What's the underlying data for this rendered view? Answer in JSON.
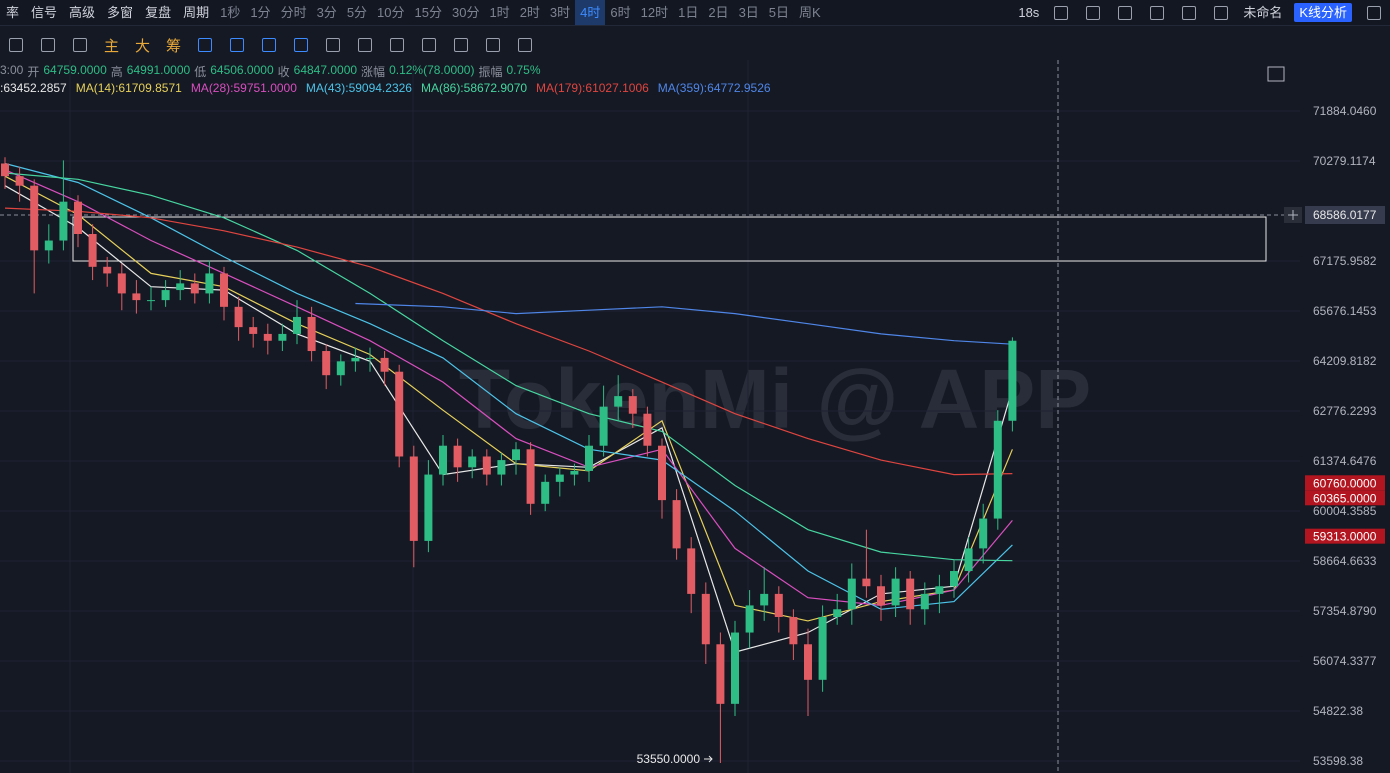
{
  "toolbar": {
    "left_items": [
      "率",
      "信号",
      "高级",
      "多窗",
      "复盘",
      "周期"
    ],
    "intervals": [
      "1秒",
      "1分",
      "分时",
      "3分",
      "5分",
      "10分",
      "15分",
      "30分",
      "1时",
      "2时",
      "3时",
      "4时",
      "6时",
      "12时",
      "1日",
      "2日",
      "3日",
      "5日",
      "周K"
    ],
    "active_interval": "4时",
    "timer": "18s",
    "layout_name": "未命名",
    "analysis_button": "K线分析"
  },
  "drawing_tools": {
    "labels": [
      "主",
      "大",
      "筹"
    ]
  },
  "ohlc_info": {
    "time": "3:00",
    "items": [
      {
        "label": "开",
        "value": "64759.0000"
      },
      {
        "label": "高",
        "value": "64991.0000"
      },
      {
        "label": "低",
        "value": "64506.0000"
      },
      {
        "label": "收",
        "value": "64847.0000"
      },
      {
        "label": "涨幅",
        "value": "0.12%(78.0000)"
      },
      {
        "label": "振幅",
        "value": "0.75%"
      }
    ]
  },
  "watermark": "TokenMi @ APP",
  "chart_data": {
    "type": "candlestick",
    "log_scale": true,
    "grid": true,
    "up_color": "#2ebd85",
    "down_color": "#e25c64",
    "ylim": [
      53309,
      73559
    ],
    "yticks": [
      {
        "value": 71884.046,
        "label": "71884.0460"
      },
      {
        "value": 70279.1174,
        "label": "70279.1174"
      },
      {
        "value": 67175.9582,
        "label": "67175.9582"
      },
      {
        "value": 65676.1453,
        "label": "65676.1453"
      },
      {
        "value": 64209.8182,
        "label": "64209.8182"
      },
      {
        "value": 62776.2293,
        "label": "62776.2293"
      },
      {
        "value": 61374.6476,
        "label": "61374.6476"
      },
      {
        "value": 60004.3585,
        "label": "60004.3585"
      },
      {
        "value": 58664.6633,
        "label": "58664.6633"
      },
      {
        "value": 57354.879,
        "label": "57354.8790"
      },
      {
        "value": 56074.3377,
        "label": "56074.3377"
      },
      {
        "value": 54822.38,
        "label": "54822.38"
      },
      {
        "value": 53598.38,
        "label": "53598.38"
      }
    ],
    "open": [
      70200,
      69800,
      69500,
      67500,
      67800,
      69000,
      68000,
      67000,
      66800,
      66200,
      66000,
      66000,
      66300,
      66500,
      66200,
      66800,
      65800,
      65200,
      65000,
      64800,
      65000,
      65500,
      64500,
      63800,
      64200,
      64300,
      64300,
      63900,
      61500,
      59200,
      61000,
      61800,
      61200,
      61500,
      61000,
      61400,
      61700,
      60200,
      60800,
      61000,
      61100,
      61800,
      62900,
      63200,
      62700,
      61800,
      60300,
      59000,
      57800,
      56500,
      55000,
      56800,
      57500,
      57800,
      57200,
      56500,
      55600,
      57200,
      57400,
      58200,
      58000,
      57500,
      58200,
      57400,
      57800,
      58000,
      58400,
      59000,
      59800,
      62500
    ],
    "high": [
      70400,
      70100,
      69700,
      68300,
      70300,
      69200,
      68300,
      67300,
      67100,
      66600,
      66400,
      66600,
      66900,
      66800,
      67200,
      67000,
      66100,
      65500,
      65300,
      65300,
      66000,
      65800,
      64700,
      64400,
      64600,
      64600,
      64500,
      64100,
      61800,
      61400,
      62100,
      62000,
      61700,
      61700,
      61600,
      61900,
      61900,
      61000,
      61200,
      61300,
      62100,
      63500,
      63800,
      63400,
      62900,
      62000,
      60600,
      59300,
      58100,
      56800,
      57100,
      57900,
      58500,
      58000,
      57400,
      56900,
      57500,
      57800,
      58600,
      59500,
      58300,
      58500,
      58400,
      58100,
      58300,
      58700,
      59300,
      60200,
      62800,
      64900
    ],
    "low": [
      69400,
      69000,
      66200,
      67100,
      67500,
      67600,
      66600,
      66400,
      65700,
      65600,
      65700,
      65800,
      66000,
      65900,
      65900,
      65400,
      64800,
      64600,
      64400,
      64500,
      64700,
      64200,
      63400,
      63500,
      63900,
      63900,
      63500,
      61200,
      58500,
      58900,
      60700,
      60800,
      60900,
      60700,
      60700,
      61000,
      59900,
      60000,
      60400,
      60700,
      60800,
      61500,
      62500,
      62300,
      61500,
      59800,
      58700,
      57300,
      56000,
      53550,
      54700,
      56400,
      57100,
      56800,
      56100,
      54700,
      55300,
      57000,
      57000,
      57700,
      57100,
      57200,
      57000,
      57000,
      57300,
      57700,
      58100,
      58600,
      59500,
      62200
    ],
    "close": [
      69800,
      69500,
      67500,
      67800,
      69000,
      68000,
      67000,
      66800,
      66200,
      66000,
      66000,
      66300,
      66500,
      66200,
      66800,
      65800,
      65200,
      65000,
      64800,
      65000,
      65500,
      64500,
      63800,
      64200,
      64300,
      64300,
      63900,
      61500,
      59200,
      61000,
      61800,
      61200,
      61500,
      61000,
      61400,
      61700,
      60200,
      60800,
      61000,
      61100,
      61800,
      62900,
      63200,
      62700,
      61800,
      60300,
      59000,
      57800,
      56500,
      55000,
      56800,
      57500,
      57800,
      57200,
      56500,
      55600,
      57200,
      57400,
      58200,
      58000,
      57500,
      58200,
      57400,
      57800,
      58000,
      58400,
      59000,
      59800,
      62500,
      64800
    ],
    "series": [
      {
        "name": ":63452.2857",
        "color": "#e8e8e8",
        "x": [
          0,
          5,
          10,
          15,
          20,
          25,
          30,
          35,
          40,
          45,
          50,
          55,
          60,
          65,
          69
        ],
        "values": [
          69500,
          68200,
          66400,
          66300,
          65000,
          64200,
          61000,
          61300,
          61200,
          62300,
          56300,
          56800,
          57800,
          58000,
          63400
        ]
      },
      {
        "name": "MA(14):61709.8571",
        "color": "#e6d05a",
        "x": [
          0,
          5,
          10,
          15,
          20,
          25,
          30,
          35,
          40,
          45,
          50,
          55,
          60,
          65,
          69
        ],
        "values": [
          69800,
          68600,
          66800,
          66400,
          65300,
          64400,
          62800,
          61300,
          61100,
          62500,
          57500,
          57100,
          57600,
          57900,
          61700
        ]
      },
      {
        "name": "MA(28):59751.0000",
        "color": "#d94fbf",
        "x": [
          0,
          5,
          10,
          15,
          20,
          25,
          30,
          35,
          40,
          45,
          50,
          55,
          60,
          65,
          69
        ],
        "values": [
          70000,
          69000,
          67800,
          66800,
          65800,
          64800,
          63600,
          62000,
          61200,
          61700,
          59000,
          57700,
          57500,
          57900,
          59751
        ]
      },
      {
        "name": "MA(43):59094.2326",
        "color": "#4cc3e8",
        "x": [
          0,
          5,
          10,
          15,
          20,
          25,
          30,
          35,
          40,
          45,
          50,
          55,
          60,
          65,
          69
        ],
        "values": [
          70200,
          69600,
          68500,
          67300,
          66200,
          65300,
          64300,
          62700,
          61700,
          61400,
          60000,
          58400,
          57400,
          57600,
          59094
        ]
      },
      {
        "name": "MA(86):58672.9070",
        "color": "#47d6a0",
        "x": [
          0,
          5,
          10,
          15,
          20,
          25,
          30,
          35,
          40,
          45,
          50,
          55,
          60,
          65,
          69
        ],
        "values": [
          69900,
          69700,
          69200,
          68500,
          67500,
          66200,
          64800,
          63500,
          62700,
          62200,
          60700,
          59500,
          58900,
          58700,
          58673
        ]
      },
      {
        "name": "MA(179):61027.1006",
        "color": "#e0453f",
        "x": [
          0,
          5,
          10,
          15,
          20,
          25,
          30,
          35,
          40,
          45,
          50,
          55,
          60,
          65,
          69
        ],
        "values": [
          68800,
          68700,
          68500,
          68100,
          67600,
          67000,
          66200,
          65300,
          64500,
          63600,
          62700,
          62000,
          61400,
          61000,
          61027
        ]
      },
      {
        "name": "MA(359):64772.9526",
        "color": "#4f86e8",
        "x": [
          24,
          30,
          35,
          40,
          45,
          50,
          55,
          60,
          65,
          69
        ],
        "values": [
          65900,
          65800,
          65600,
          65700,
          65800,
          65600,
          65300,
          65000,
          64800,
          64700
        ]
      }
    ],
    "crosshair": {
      "value": 68586.0177,
      "label": "68586.0177"
    },
    "price_tags": [
      {
        "value": 60760,
        "label": "60760.0000"
      },
      {
        "value": 60365,
        "label": "60365.0000"
      },
      {
        "value": 59313,
        "label": "59313.0000"
      }
    ],
    "low_marker": {
      "value": 53550,
      "label": "53550.0000"
    }
  }
}
